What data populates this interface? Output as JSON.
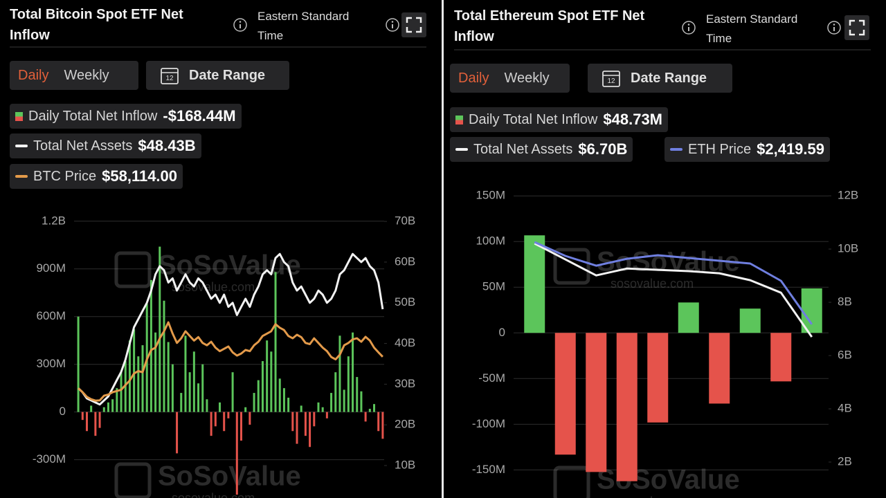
{
  "chart_data": [
    {
      "type": "bar",
      "title": "Total Bitcoin Spot ETF Net Inflow",
      "timezone": "Eastern Standard Time",
      "controls": {
        "tabs": [
          "Daily",
          "Weekly"
        ],
        "date_range": "Date Range",
        "calendar_day": "12"
      },
      "watermark": "SoSoValue",
      "watermark_url": "sosovalue.com",
      "ylim": [
        -480,
        1260
      ],
      "yticks": [
        {
          "value": 1200,
          "label": "1.2B"
        },
        {
          "value": 900,
          "label": "900M"
        },
        {
          "value": 600,
          "label": "600M"
        },
        {
          "value": 300,
          "label": "300M"
        },
        0,
        {
          "value": -300,
          "label": "-300M"
        }
      ],
      "y2lim": [
        4.4,
        72.4
      ],
      "y2ticks": [
        {
          "value": 70,
          "label": "70B"
        },
        {
          "value": 60,
          "label": "60B"
        },
        {
          "value": 50,
          "label": "50B"
        },
        {
          "value": 40,
          "label": "40B"
        },
        {
          "value": 30,
          "label": "30B"
        },
        {
          "value": 20,
          "label": "20B"
        },
        {
          "value": 10,
          "label": "10B"
        }
      ],
      "y3lim": [
        2000,
        120000
      ],
      "grid": true,
      "series": [
        {
          "name": "Daily Total Net Inflow",
          "type": "bar",
          "value_label": "-$168.44M",
          "color": "#5cc55b",
          "negative_color": "#e5534b",
          "values": [
            600,
            -50,
            -120,
            40,
            -150,
            -100,
            30,
            60,
            80,
            150,
            250,
            320,
            450,
            520,
            350,
            420,
            680,
            830,
            500,
            1040,
            700,
            440,
            300,
            -260,
            120,
            480,
            250,
            380,
            180,
            300,
            80,
            -150,
            -90,
            60,
            -120,
            -40,
            250,
            -520,
            -180,
            30,
            -80,
            120,
            200,
            320,
            450,
            380,
            880,
            210,
            150,
            90,
            -120,
            -200,
            40,
            -150,
            -220,
            -90,
            60,
            30,
            -40,
            120,
            250,
            480,
            140,
            350,
            500,
            220,
            130,
            -60,
            20,
            50,
            -120,
            -168.44
          ]
        },
        {
          "name": "Total Net Assets",
          "type": "line",
          "axis": "y2",
          "value_label": "$48.43B",
          "color": "#f2f2f2",
          "values": [
            29,
            28,
            26.5,
            26,
            25.5,
            25,
            26,
            27,
            29,
            31,
            33,
            36,
            40,
            44,
            46,
            48,
            50,
            53,
            57,
            59,
            58,
            55,
            56,
            53,
            55,
            57,
            55,
            54,
            56,
            55,
            53,
            51,
            52,
            50,
            52,
            49,
            50,
            47,
            49,
            51,
            49,
            52,
            54,
            57,
            58,
            57,
            61,
            62,
            60,
            59,
            55,
            53,
            54,
            52,
            50,
            51,
            53,
            52,
            50,
            51,
            53,
            57,
            58,
            60,
            62,
            61,
            60,
            61,
            59,
            58,
            55,
            48.43
          ]
        },
        {
          "name": "BTC Price",
          "type": "line",
          "axis": "y3",
          "value_label": "$58,114.00",
          "color": "#e39a4a",
          "values": [
            44700,
            43000,
            41000,
            40000,
            39400,
            39500,
            41500,
            42000,
            43000,
            43500,
            44000,
            46000,
            48000,
            51000,
            52000,
            51500,
            57000,
            61000,
            62000,
            66000,
            69000,
            72800,
            68000,
            64000,
            66000,
            69000,
            67000,
            65000,
            66500,
            64000,
            63000,
            64500,
            62000,
            60500,
            61500,
            62500,
            60000,
            58600,
            59500,
            61000,
            60500,
            63000,
            64500,
            67000,
            68000,
            69000,
            72000,
            70500,
            69500,
            67000,
            66000,
            67500,
            66500,
            64000,
            63500,
            66000,
            64000,
            62000,
            60500,
            58000,
            57000,
            59000,
            63000,
            64000,
            65500,
            66000,
            64500,
            66600,
            65000,
            62000,
            60000,
            58114
          ]
        }
      ]
    },
    {
      "type": "bar",
      "title": "Total Ethereum Spot ETF Net Inflow",
      "timezone": "Eastern Standard Time",
      "controls": {
        "tabs": [
          "Daily",
          "Weekly"
        ],
        "date_range": "Date Range",
        "calendar_day": "12"
      },
      "watermark": "SoSoValue",
      "watermark_url": "sosovalue.com",
      "ylim": [
        -177,
        160
      ],
      "yticks": [
        {
          "value": 150,
          "label": "150M"
        },
        {
          "value": 100,
          "label": "100M"
        },
        {
          "value": 50,
          "label": "50M"
        },
        0,
        {
          "value": -50,
          "label": "-50M"
        },
        {
          "value": -100,
          "label": "-100M"
        },
        {
          "value": -150,
          "label": "-150M"
        }
      ],
      "y2lim": [
        0.78,
        12.34
      ],
      "y2ticks": [
        {
          "value": 12,
          "label": "12B"
        },
        {
          "value": 10,
          "label": "10B"
        },
        {
          "value": 8,
          "label": "8B"
        },
        {
          "value": 6,
          "label": "6B"
        },
        {
          "value": 4,
          "label": "4B"
        },
        {
          "value": 2,
          "label": "2B"
        }
      ],
      "y3lim": [
        230,
        4190
      ],
      "grid": true,
      "series": [
        {
          "name": "Daily Total Net Inflow",
          "type": "bar",
          "value_label": "$48.73M",
          "color": "#5cc55b",
          "negative_color": "#e5534b",
          "values": [
            106.8,
            -133.3,
            -152.3,
            -162.4,
            -98.1,
            33.3,
            -77.4,
            26.6,
            -53.1,
            48.73
          ]
        },
        {
          "name": "Total Net Assets",
          "type": "line",
          "axis": "y2",
          "value_label": "$6.70B",
          "color": "#f2f2f2",
          "values": [
            10.21,
            9.61,
            9.01,
            9.27,
            9.22,
            9.17,
            9.09,
            8.83,
            8.36,
            6.7
          ]
        },
        {
          "name": "ETH Price",
          "type": "line",
          "axis": "y3",
          "value_label": "$2,419.59",
          "color": "#6f7fe0",
          "values": [
            3478,
            3300,
            3175,
            3264,
            3309,
            3273,
            3238,
            3202,
            2980,
            2419.59
          ]
        }
      ]
    }
  ]
}
